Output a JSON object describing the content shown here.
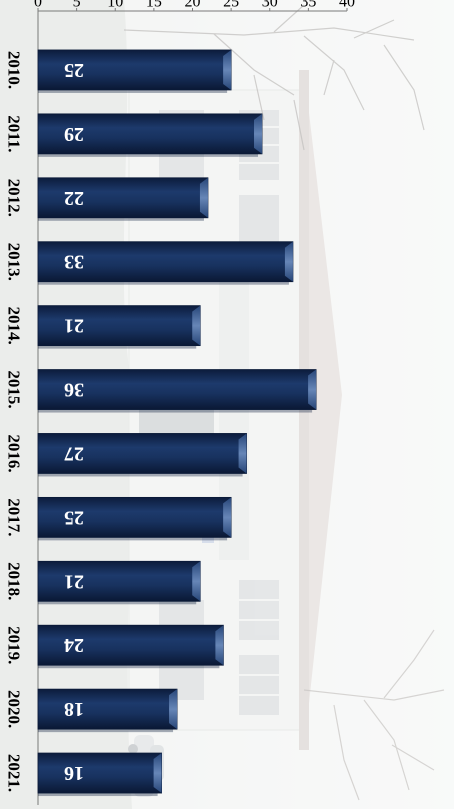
{
  "chart_data": {
    "type": "bar",
    "categories": [
      "2010.",
      "2011.",
      "2012.",
      "2013.",
      "2014.",
      "2015.",
      "2016.",
      "2017.",
      "2018.",
      "2019.",
      "2020.",
      "2021."
    ],
    "values": [
      25,
      29,
      22,
      33,
      21,
      36,
      27,
      25,
      21,
      24,
      18,
      16
    ],
    "ylim": [
      0,
      40
    ],
    "yticks": [
      0,
      5,
      10,
      15,
      20,
      25,
      30,
      35,
      40
    ],
    "grid": false,
    "orientation": "rotated-90-clockwise",
    "background": "faded winter photograph of a building with snowy trees",
    "colors": {
      "bar": "#18325f",
      "bar_highlight": "#4a6a9c",
      "bar_shadow": "#0a1a38",
      "label": "#ffffff",
      "axis": "#7a7a7a",
      "tick_label": "#000000"
    }
  }
}
